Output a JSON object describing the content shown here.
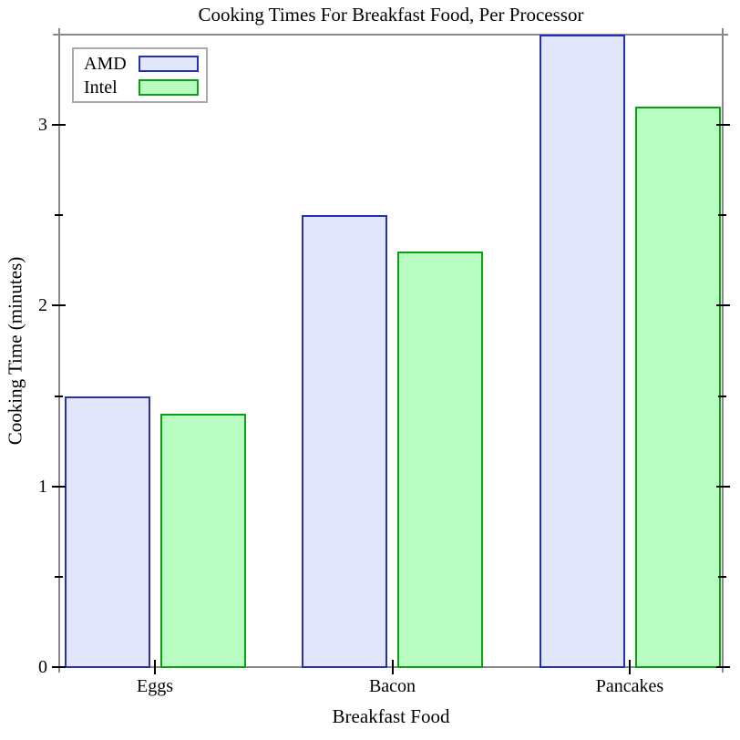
{
  "chart_data": {
    "type": "bar",
    "title": "Cooking Times For Breakfast Food, Per Processor",
    "xlabel": "Breakfast Food",
    "ylabel": "Cooking Time (minutes)",
    "categories": [
      "Eggs",
      "Bacon",
      "Pancakes"
    ],
    "series": [
      {
        "name": "AMD",
        "values": [
          1.5,
          2.5,
          3.5
        ],
        "fill": "#e2e6fb",
        "stroke": "#2530b0"
      },
      {
        "name": "Intel",
        "values": [
          1.4,
          2.3,
          3.1
        ],
        "fill": "#b8fcc2",
        "stroke": "#0aa012"
      }
    ],
    "ylim": [
      0,
      3.5
    ],
    "y_ticks": {
      "major": [
        {
          "value": 0,
          "label": "0"
        },
        {
          "value": 1,
          "label": "1"
        },
        {
          "value": 2,
          "label": "2"
        },
        {
          "value": 3,
          "label": "3"
        }
      ],
      "minor": [
        0.5,
        1.5,
        2.5
      ]
    },
    "grid": false,
    "legend_position": "top-left"
  }
}
